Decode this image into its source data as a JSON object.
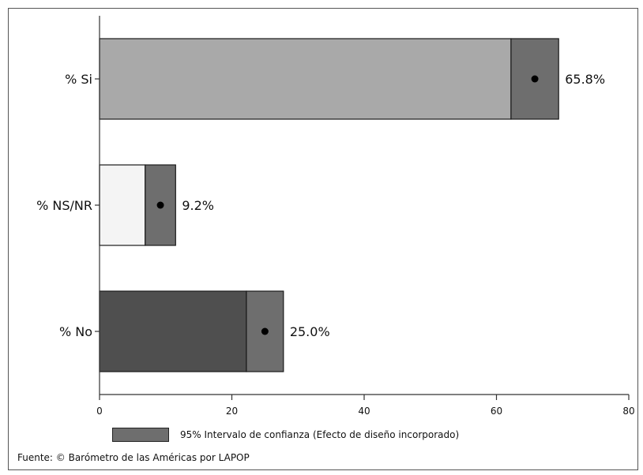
{
  "chart_data": {
    "type": "bar",
    "orientation": "horizontal",
    "categories": [
      "% Si",
      "% NS/NR",
      "% No"
    ],
    "values": [
      65.8,
      9.2,
      25.0
    ],
    "value_labels": [
      "65.8%",
      "9.2%",
      "25.0%"
    ],
    "ci_lower": [
      62.2,
      6.9,
      22.2
    ],
    "ci_upper": [
      69.4,
      11.5,
      27.8
    ],
    "bar_colors": [
      "#a9a9a9",
      "#f4f4f4",
      "#4f4f4f"
    ],
    "ci_color": "#6e6e6e",
    "xlim": [
      0,
      80
    ],
    "xticks": [
      0,
      20,
      40,
      60,
      80
    ],
    "grid": false,
    "legend": {
      "placement": "bottom",
      "label": "95% Intervalo de confianza (Efecto de diseño incorporado)"
    },
    "source": "Fuente: © Barómetro de las Américas por LAPOP"
  }
}
